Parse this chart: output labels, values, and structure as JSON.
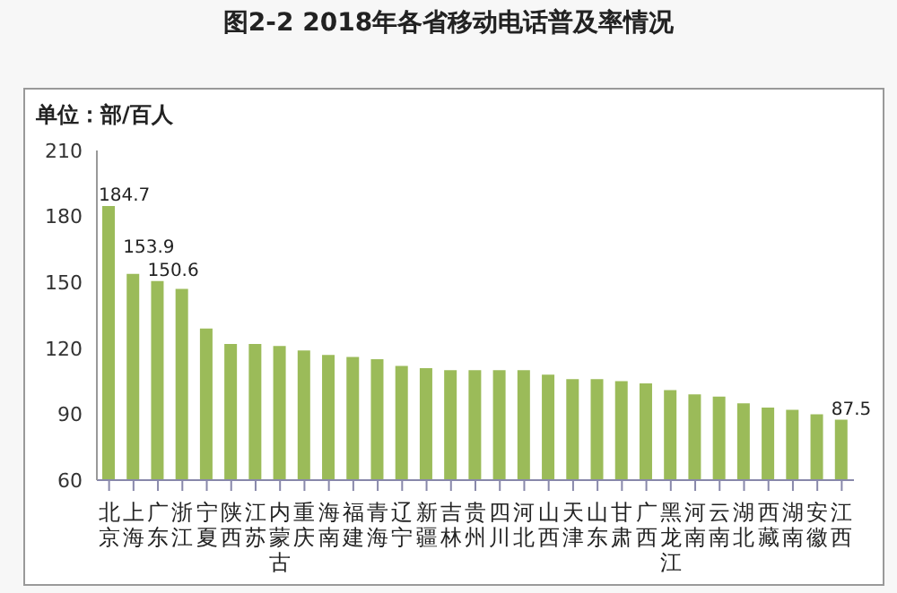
{
  "chart_data": {
    "type": "bar",
    "title": "图2-2 2018年各省移动电话普及率情况",
    "ylabel": "单位：部/百人",
    "categories": [
      "北京",
      "上海",
      "广东",
      "浙江",
      "宁夏",
      "陕西",
      "江苏",
      "内蒙古",
      "重庆",
      "海南",
      "福建",
      "青海",
      "辽宁",
      "新疆",
      "吉林",
      "贵州",
      "四川",
      "河北",
      "山西",
      "天津",
      "山东",
      "甘肃",
      "广西",
      "黑龙江",
      "河南",
      "云南",
      "湖北",
      "西藏",
      "湖南",
      "安徽",
      "江西"
    ],
    "values": [
      184.7,
      153.9,
      150.6,
      147,
      129,
      122,
      122,
      121,
      119,
      117,
      116,
      115,
      112,
      111,
      110,
      110,
      110,
      110,
      108,
      106,
      106,
      105,
      104,
      101,
      99,
      98,
      95,
      93,
      92,
      90,
      87.5
    ],
    "value_labels": [
      "184.7",
      "153.9",
      "150.6",
      null,
      null,
      null,
      null,
      null,
      null,
      null,
      null,
      null,
      null,
      null,
      null,
      null,
      null,
      null,
      null,
      null,
      null,
      null,
      null,
      null,
      null,
      null,
      null,
      null,
      null,
      null,
      "87.5"
    ],
    "color": "#9bbb59",
    "ylim": [
      60,
      210
    ],
    "yticks": [
      60,
      90,
      120,
      150,
      180,
      210
    ],
    "grid": false,
    "legend": false
  }
}
